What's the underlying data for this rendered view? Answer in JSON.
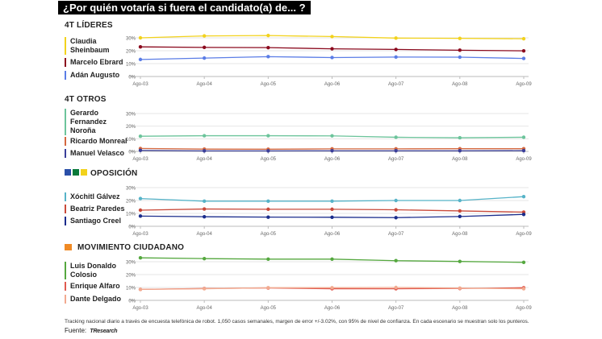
{
  "title": "¿Por quién votaría si fuera el candidato(a) de... ?",
  "note": "Tracking nacional diario a través de encuesta telefónica de robot. 1,050 casos semanales, margen de error +/-3.02%, con 95% de nivel de confianza. En cada escenario se muestran solo los punteros.",
  "source_label": "Fuente:",
  "source_name": "TResearch",
  "chart_data": [
    {
      "type": "line",
      "title": "4T LÍDERES",
      "categories": [
        "Ago-03",
        "Ago-04",
        "Ago-05",
        "Ago-06",
        "Ago-07",
        "Ago-08",
        "Ago-09"
      ],
      "yticks": [
        "0%",
        "10%",
        "20%",
        "30%"
      ],
      "ylim": [
        0,
        30
      ],
      "grid": true,
      "series": [
        {
          "name": "Claudia Sheinbaum",
          "color": "#f2d21c",
          "values": [
            30.0,
            31.5,
            31.8,
            31.0,
            29.8,
            29.6,
            29.3
          ]
        },
        {
          "name": "Marcelo Ebrard",
          "color": "#8b0a1e",
          "values": [
            23.0,
            22.6,
            22.4,
            21.5,
            21.0,
            20.4,
            19.9
          ]
        },
        {
          "name": "Adán Augusto",
          "color": "#5b7de6",
          "values": [
            13.2,
            14.3,
            15.4,
            14.7,
            15.1,
            15.0,
            14.0
          ]
        }
      ]
    },
    {
      "type": "line",
      "title": "4T OTROS",
      "categories": [
        "Ago-03",
        "Ago-04",
        "Ago-05",
        "Ago-06",
        "Ago-07",
        "Ago-08",
        "Ago-09"
      ],
      "yticks": [
        "0%",
        "10%",
        "20%",
        "30%"
      ],
      "ylim": [
        0,
        30
      ],
      "grid": true,
      "series": [
        {
          "name": "Gerardo Fernandez Noroña",
          "color": "#6cc49b",
          "values": [
            12.0,
            12.4,
            12.4,
            12.3,
            11.2,
            10.8,
            11.2
          ]
        },
        {
          "name": "Ricardo Monreal",
          "color": "#d4683f",
          "values": [
            2.3,
            1.8,
            1.7,
            2.0,
            2.0,
            2.1,
            2.1
          ]
        },
        {
          "name": "Manuel Velasco",
          "color": "#3b3f9a",
          "values": [
            0.8,
            0.4,
            0.4,
            0.5,
            0.5,
            0.5,
            0.6
          ]
        }
      ]
    },
    {
      "type": "line",
      "title": "OPOSICIÓN",
      "categories": [
        "Ago-03",
        "Ago-04",
        "Ago-05",
        "Ago-06",
        "Ago-07",
        "Ago-08",
        "Ago-09"
      ],
      "yticks": [
        "0%",
        "10%",
        "20%",
        "30%"
      ],
      "ylim": [
        0,
        30
      ],
      "grid": true,
      "series": [
        {
          "name": "Xóchitl Gálvez",
          "color": "#56b3c8",
          "values": [
            21.5,
            19.5,
            19.5,
            19.5,
            20.0,
            20.0,
            23.0
          ]
        },
        {
          "name": "Beatriz Paredes",
          "color": "#c94a3a",
          "values": [
            12.5,
            13.4,
            13.2,
            13.2,
            12.8,
            11.9,
            11.0
          ]
        },
        {
          "name": "Santiago Creel",
          "color": "#1a2c8c",
          "values": [
            7.9,
            7.4,
            7.1,
            7.0,
            6.7,
            7.6,
            9.2
          ]
        }
      ]
    },
    {
      "type": "line",
      "title": "MOVIMIENTO CIUDADANO",
      "categories": [
        "Ago-03",
        "Ago-04",
        "Ago-05",
        "Ago-06",
        "Ago-07",
        "Ago-08",
        "Ago-09"
      ],
      "yticks": [
        "0%",
        "10%",
        "20%",
        "30%"
      ],
      "ylim": [
        0,
        30
      ],
      "grid": true,
      "series": [
        {
          "name": "Luis Donaldo Colosio",
          "color": "#55a83f",
          "values": [
            33.0,
            32.4,
            32.0,
            32.0,
            30.8,
            30.2,
            29.5
          ]
        },
        {
          "name": "Enrique Alfaro",
          "color": "#e05a4f",
          "values": [
            8.5,
            9.2,
            9.6,
            9.0,
            9.0,
            9.2,
            9.8
          ]
        },
        {
          "name": "Dante Delgado",
          "color": "#f2aa90",
          "values": [
            8.5,
            9.0,
            9.8,
            9.8,
            10.0,
            9.5,
            9.0
          ]
        }
      ]
    }
  ],
  "colors": {
    "mc_icon": "#f08a24",
    "flag_1": "#2a4fa8",
    "flag_2": "#0a7a3a",
    "flag_3": "#f2d21c"
  }
}
